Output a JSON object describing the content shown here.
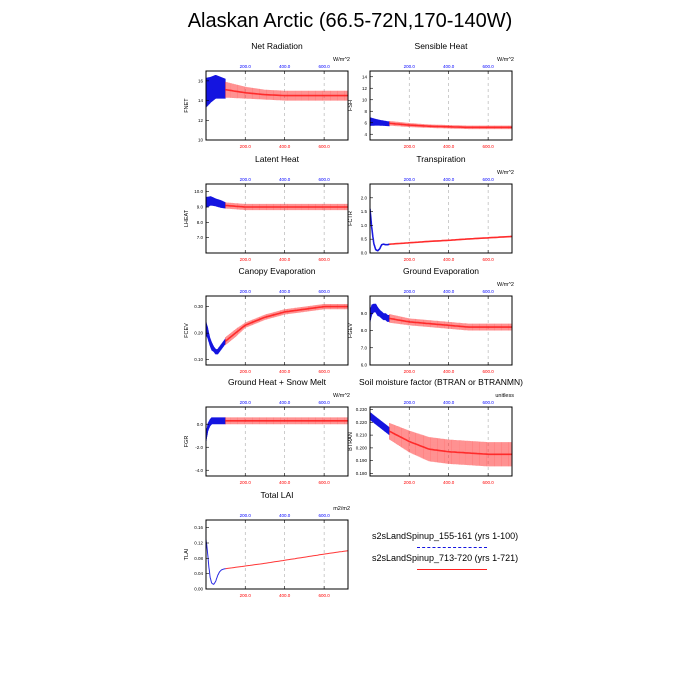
{
  "title": "Alaskan Arctic (66.5-72N,170-140W)",
  "colors": {
    "run1": "#1414e0",
    "run2": "#ff2020",
    "tick_top": "#0000ff",
    "tick_bottom": "#ff0000"
  },
  "legend": {
    "items": [
      {
        "label": "s2sLandSpinup_155-161 (yrs 1-100)",
        "color": "#1414e0",
        "style": "dashed"
      },
      {
        "label": "s2sLandSpinup_713-720 (yrs 1-721)",
        "color": "#ff2020",
        "style": "solid"
      }
    ]
  },
  "chart_data": [
    {
      "type": "line",
      "title": "Net Radiation",
      "ylabel": "FNET",
      "unit": "W/m^2",
      "xlim": [
        1,
        721
      ],
      "ylim": [
        10,
        17
      ],
      "yticks": [
        "10",
        "12",
        "14",
        "16"
      ],
      "xticks_top": [
        "200.0",
        "400.0",
        "600.0"
      ],
      "xticks_bottom": [
        "200.0",
        "400.0",
        "600.0"
      ],
      "series": [
        {
          "name": "s2sLandSpinup_155-161 (yrs 1-100)",
          "x": [
            1,
            25,
            50,
            75,
            100
          ],
          "mean": [
            14.8,
            15.1,
            15.4,
            15.3,
            15.2
          ],
          "amplitude": [
            3.0,
            2.6,
            2.4,
            2.2,
            2.0
          ]
        },
        {
          "name": "s2sLandSpinup_713-720 (yrs 1-721)",
          "x": [
            100,
            200,
            300,
            400,
            500,
            600,
            721
          ],
          "mean": [
            15.1,
            14.8,
            14.6,
            14.5,
            14.5,
            14.5,
            14.5
          ],
          "amplitude": [
            1.6,
            1.2,
            1.0,
            1.0,
            1.0,
            1.0,
            1.0
          ]
        }
      ]
    },
    {
      "type": "line",
      "title": "Sensible Heat",
      "ylabel": "FSH",
      "unit": "W/m^2",
      "xlim": [
        1,
        721
      ],
      "ylim": [
        3,
        15
      ],
      "yticks": [
        "4",
        "6",
        "8",
        "10",
        "12",
        "14"
      ],
      "xticks_top": [
        "200.0",
        "400.0",
        "600.0"
      ],
      "xticks_bottom": [
        "200.0",
        "400.0",
        "600.0"
      ],
      "series": [
        {
          "name": "s2sLandSpinup_155-161 (yrs 1-100)",
          "x": [
            1,
            25,
            50,
            75,
            100
          ],
          "mean": [
            6.2,
            6.1,
            6.0,
            5.9,
            5.8
          ],
          "amplitude": [
            1.5,
            1.2,
            1.0,
            0.9,
            0.8
          ]
        },
        {
          "name": "s2sLandSpinup_713-720 (yrs 1-721)",
          "x": [
            100,
            200,
            300,
            400,
            500,
            600,
            721
          ],
          "mean": [
            5.9,
            5.6,
            5.4,
            5.3,
            5.2,
            5.2,
            5.2
          ],
          "amplitude": [
            0.8,
            0.7,
            0.6,
            0.6,
            0.6,
            0.6,
            0.6
          ]
        }
      ]
    },
    {
      "type": "line",
      "title": "Latent Heat",
      "ylabel": "LHEAT",
      "unit": "",
      "xlim": [
        1,
        721
      ],
      "ylim": [
        6,
        10.5
      ],
      "yticks": [
        "7.0",
        "8.0",
        "9.0",
        "10.0"
      ],
      "xticks_top": [
        "200.0",
        "400.0",
        "600.0"
      ],
      "xticks_bottom": [
        "200.0",
        "400.0",
        "600.0"
      ],
      "series": [
        {
          "name": "s2sLandSpinup_155-161 (yrs 1-100)",
          "x": [
            1,
            25,
            50,
            75,
            100
          ],
          "mean": [
            9.3,
            9.4,
            9.3,
            9.2,
            9.1
          ],
          "amplitude": [
            0.7,
            0.6,
            0.5,
            0.5,
            0.4
          ]
        },
        {
          "name": "s2sLandSpinup_713-720 (yrs 1-721)",
          "x": [
            100,
            200,
            300,
            400,
            500,
            600,
            721
          ],
          "mean": [
            9.1,
            9.0,
            9.0,
            9.0,
            9.0,
            9.0,
            9.0
          ],
          "amplitude": [
            0.4,
            0.4,
            0.4,
            0.4,
            0.4,
            0.4,
            0.4
          ]
        }
      ]
    },
    {
      "type": "line",
      "title": "Transpiration",
      "ylabel": "FCTR",
      "unit": "W/m^2",
      "xlim": [
        1,
        721
      ],
      "ylim": [
        0,
        2.5
      ],
      "yticks": [
        "0.0",
        "0.5",
        "1.0",
        "1.5",
        "2.0"
      ],
      "xticks_top": [
        "200.0",
        "400.0",
        "600.0"
      ],
      "xticks_bottom": [
        "200.0",
        "400.0",
        "600.0"
      ],
      "series": [
        {
          "name": "s2sLandSpinup_155-161 (yrs 1-100)",
          "x": [
            1,
            10,
            20,
            30,
            40,
            50,
            60,
            70,
            80,
            90,
            100
          ],
          "mean": [
            1.6,
            0.9,
            0.35,
            0.12,
            0.08,
            0.15,
            0.3,
            0.32,
            0.3,
            0.3,
            0.32
          ],
          "amplitude": [
            0.15,
            0.1,
            0.06,
            0.04,
            0.04,
            0.04,
            0.04,
            0.04,
            0.04,
            0.04,
            0.04
          ]
        },
        {
          "name": "s2sLandSpinup_713-720 (yrs 1-721)",
          "x": [
            100,
            200,
            300,
            400,
            500,
            600,
            721
          ],
          "mean": [
            0.32,
            0.37,
            0.42,
            0.46,
            0.51,
            0.55,
            0.6
          ],
          "amplitude": [
            0.04,
            0.04,
            0.05,
            0.05,
            0.05,
            0.05,
            0.05
          ]
        }
      ]
    },
    {
      "type": "line",
      "title": "Canopy Evaporation",
      "ylabel": "FCEV",
      "unit": "",
      "xlim": [
        1,
        721
      ],
      "ylim": [
        0.08,
        0.34
      ],
      "yticks": [
        "0.10",
        "0.20",
        "0.30"
      ],
      "xticks_top": [
        "200.0",
        "400.0",
        "600.0"
      ],
      "xticks_bottom": [
        "200.0",
        "400.0",
        "600.0"
      ],
      "series": [
        {
          "name": "s2sLandSpinup_155-161 (yrs 1-100)",
          "x": [
            1,
            10,
            20,
            30,
            40,
            50,
            60,
            70,
            80,
            90,
            100
          ],
          "mean": [
            0.22,
            0.2,
            0.17,
            0.15,
            0.14,
            0.13,
            0.13,
            0.14,
            0.15,
            0.16,
            0.17
          ],
          "amplitude": [
            0.05,
            0.04,
            0.03,
            0.03,
            0.02,
            0.02,
            0.02,
            0.02,
            0.02,
            0.02,
            0.02
          ]
        },
        {
          "name": "s2sLandSpinup_713-720 (yrs 1-721)",
          "x": [
            100,
            150,
            200,
            300,
            400,
            500,
            600,
            721
          ],
          "mean": [
            0.17,
            0.2,
            0.23,
            0.26,
            0.28,
            0.29,
            0.3,
            0.3
          ],
          "amplitude": [
            0.03,
            0.03,
            0.02,
            0.02,
            0.02,
            0.02,
            0.02,
            0.02
          ]
        }
      ]
    },
    {
      "type": "line",
      "title": "Ground Evaporation",
      "ylabel": "FGEV",
      "unit": "W/m^2",
      "xlim": [
        1,
        721
      ],
      "ylim": [
        6,
        10
      ],
      "yticks": [
        "6.0",
        "7.0",
        "8.0",
        "9.0"
      ],
      "xticks_top": [
        "200.0",
        "400.0",
        "600.0"
      ],
      "xticks_bottom": [
        "200.0",
        "400.0",
        "600.0"
      ],
      "series": [
        {
          "name": "s2sLandSpinup_155-161 (yrs 1-100)",
          "x": [
            1,
            10,
            20,
            30,
            40,
            50,
            60,
            70,
            80,
            90,
            100
          ],
          "mean": [
            8.8,
            9.2,
            9.3,
            9.3,
            9.1,
            9.0,
            8.9,
            8.8,
            8.8,
            8.7,
            8.7
          ],
          "amplitude": [
            0.7,
            0.6,
            0.5,
            0.5,
            0.5,
            0.4,
            0.4,
            0.4,
            0.4,
            0.4,
            0.4
          ]
        },
        {
          "name": "s2sLandSpinup_713-720 (yrs 1-721)",
          "x": [
            100,
            200,
            300,
            400,
            500,
            600,
            721
          ],
          "mean": [
            8.7,
            8.5,
            8.4,
            8.3,
            8.2,
            8.2,
            8.2
          ],
          "amplitude": [
            0.5,
            0.4,
            0.4,
            0.4,
            0.4,
            0.4,
            0.4
          ]
        }
      ]
    },
    {
      "type": "line",
      "title": "Ground Heat + Snow Melt",
      "ylabel": "FGR",
      "unit": "W/m^2",
      "xlim": [
        1,
        721
      ],
      "ylim": [
        -4.5,
        1.5
      ],
      "yticks": [
        "-4.0",
        "-2.0",
        "0.0"
      ],
      "xticks_top": [
        "200.0",
        "400.0",
        "600.0"
      ],
      "xticks_bottom": [
        "200.0",
        "400.0",
        "600.0"
      ],
      "series": [
        {
          "name": "s2sLandSpinup_155-161 (yrs 1-100)",
          "x": [
            1,
            10,
            20,
            30,
            40,
            50,
            60,
            70,
            80,
            90,
            100
          ],
          "mean": [
            -1.2,
            -0.3,
            0.1,
            0.3,
            0.3,
            0.3,
            0.3,
            0.3,
            0.3,
            0.3,
            0.3
          ],
          "amplitude": [
            0.8,
            0.7,
            0.6,
            0.6,
            0.6,
            0.6,
            0.6,
            0.6,
            0.6,
            0.6,
            0.6
          ]
        },
        {
          "name": "s2sLandSpinup_713-720 (yrs 1-721)",
          "x": [
            100,
            200,
            300,
            400,
            500,
            600,
            721
          ],
          "mean": [
            0.3,
            0.3,
            0.3,
            0.3,
            0.3,
            0.3,
            0.3
          ],
          "amplitude": [
            0.6,
            0.6,
            0.6,
            0.6,
            0.6,
            0.6,
            0.6
          ]
        }
      ]
    },
    {
      "type": "line",
      "title": "Soil moisture factor (BTRAN or BTRANMN)",
      "ylabel": "BTRAN",
      "unit": "unitless",
      "xlim": [
        1,
        721
      ],
      "ylim": [
        0.178,
        0.232
      ],
      "yticks": [
        "0.180",
        "0.190",
        "0.200",
        "0.210",
        "0.220",
        "0.230"
      ],
      "xticks_top": [
        "200.0",
        "400.0",
        "600.0"
      ],
      "xticks_bottom": [
        "200.0",
        "400.0",
        "600.0"
      ],
      "series": [
        {
          "name": "s2sLandSpinup_155-161 (yrs 1-100)",
          "x": [
            1,
            25,
            50,
            75,
            100
          ],
          "mean": [
            0.225,
            0.222,
            0.219,
            0.216,
            0.213
          ],
          "amplitude": [
            0.006,
            0.006,
            0.006,
            0.006,
            0.006
          ]
        },
        {
          "name": "s2sLandSpinup_713-720 (yrs 1-721)",
          "x": [
            100,
            200,
            300,
            400,
            500,
            600,
            721
          ],
          "mean": [
            0.213,
            0.205,
            0.199,
            0.197,
            0.196,
            0.195,
            0.195
          ],
          "amplitude": [
            0.013,
            0.017,
            0.019,
            0.019,
            0.019,
            0.019,
            0.019
          ]
        }
      ]
    },
    {
      "type": "line",
      "title": "Total LAI",
      "ylabel": "TLAI",
      "unit": "m2/m2",
      "xlim": [
        1,
        721
      ],
      "ylim": [
        0,
        0.18
      ],
      "yticks": [
        "0.00",
        "0.04",
        "0.08",
        "0.12",
        "0.16"
      ],
      "xticks_top": [
        "200.0",
        "400.0",
        "600.0"
      ],
      "xticks_bottom": [
        "200.0",
        "400.0",
        "600.0"
      ],
      "series": [
        {
          "name": "s2sLandSpinup_155-161 (yrs 1-100)",
          "x": [
            1,
            8,
            15,
            22,
            30,
            40,
            50,
            60,
            70,
            80,
            90,
            100
          ],
          "mean": [
            0.13,
            0.1,
            0.06,
            0.03,
            0.015,
            0.012,
            0.02,
            0.035,
            0.045,
            0.05,
            0.052,
            0.053
          ],
          "amplitude": [
            0,
            0,
            0,
            0,
            0,
            0,
            0,
            0,
            0,
            0,
            0,
            0
          ]
        },
        {
          "name": "s2sLandSpinup_713-720 (yrs 1-721)",
          "x": [
            100,
            200,
            300,
            400,
            500,
            600,
            721
          ],
          "mean": [
            0.053,
            0.06,
            0.067,
            0.075,
            0.083,
            0.091,
            0.1
          ],
          "amplitude": [
            0,
            0,
            0,
            0,
            0,
            0,
            0
          ]
        }
      ]
    }
  ]
}
